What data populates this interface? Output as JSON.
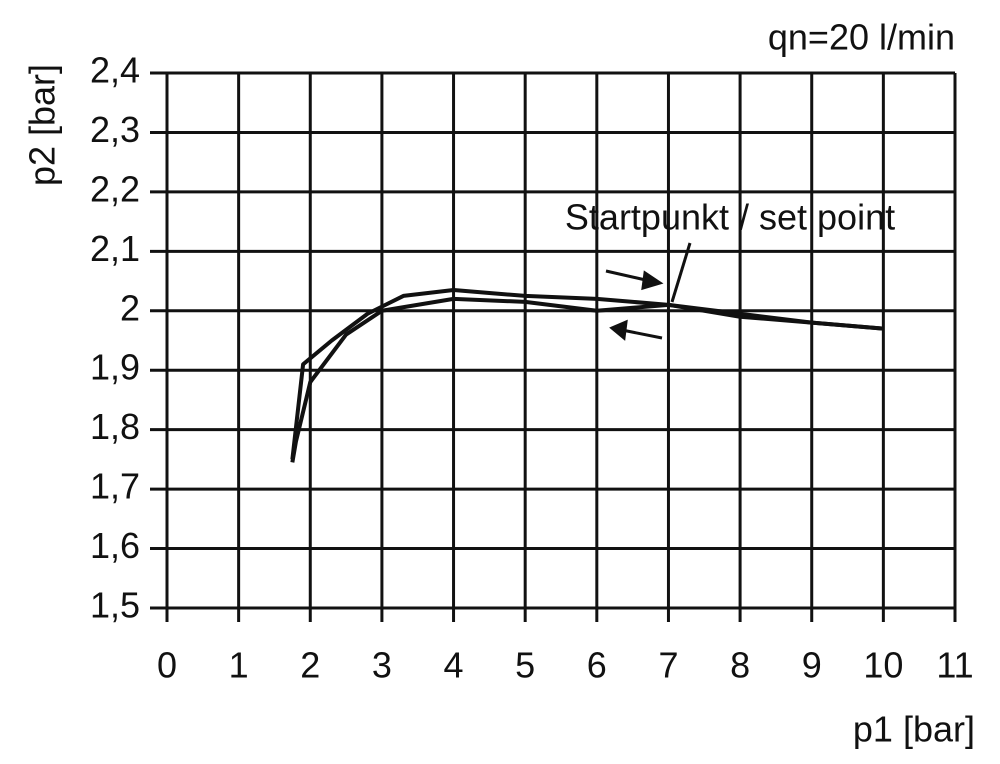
{
  "chart_data": {
    "type": "line",
    "title": "qn=20 l/min",
    "x_label": "p1 [bar]",
    "y_label": "p2 [bar]",
    "annotation": "Startpunkt / set point",
    "xlim": [
      0,
      11
    ],
    "xticks": [
      0,
      1,
      2,
      3,
      4,
      5,
      6,
      7,
      8,
      9,
      10,
      11
    ],
    "ylim": [
      1.5,
      2.4
    ],
    "yticks": [
      {
        "value": 1.5,
        "label": "1,5"
      },
      {
        "value": 1.6,
        "label": "1,6"
      },
      {
        "value": 1.7,
        "label": "1,7"
      },
      {
        "value": 1.8,
        "label": "1,8"
      },
      {
        "value": 1.9,
        "label": "1,9"
      },
      2,
      {
        "value": 2.1,
        "label": "2,1"
      },
      {
        "value": 2.2,
        "label": "2,2"
      },
      {
        "value": 2.3,
        "label": "2,3"
      },
      {
        "value": 2.4,
        "label": "2,4"
      }
    ],
    "grid": true,
    "series": [
      {
        "color": "#111111",
        "x": [
          1.75,
          1.9,
          2.3,
          2.8,
          3.3,
          4.0,
          4.5,
          5.0,
          6.0,
          7.0,
          8.0,
          9.0,
          10.0
        ],
        "values": [
          1.75,
          1.91,
          1.95,
          1.995,
          2.025,
          2.035,
          2.03,
          2.025,
          2.02,
          2.01,
          1.99,
          1.98,
          1.97
        ]
      },
      {
        "color": "#111111",
        "x": [
          10.0,
          9.0,
          8.0,
          7.0,
          6.0,
          5.0,
          4.0,
          3.0,
          2.5,
          2.0,
          1.8,
          1.75
        ],
        "values": [
          1.97,
          1.98,
          1.995,
          2.01,
          2.0,
          2.015,
          2.02,
          2.0,
          1.96,
          1.88,
          1.78,
          1.745
        ]
      }
    ]
  }
}
